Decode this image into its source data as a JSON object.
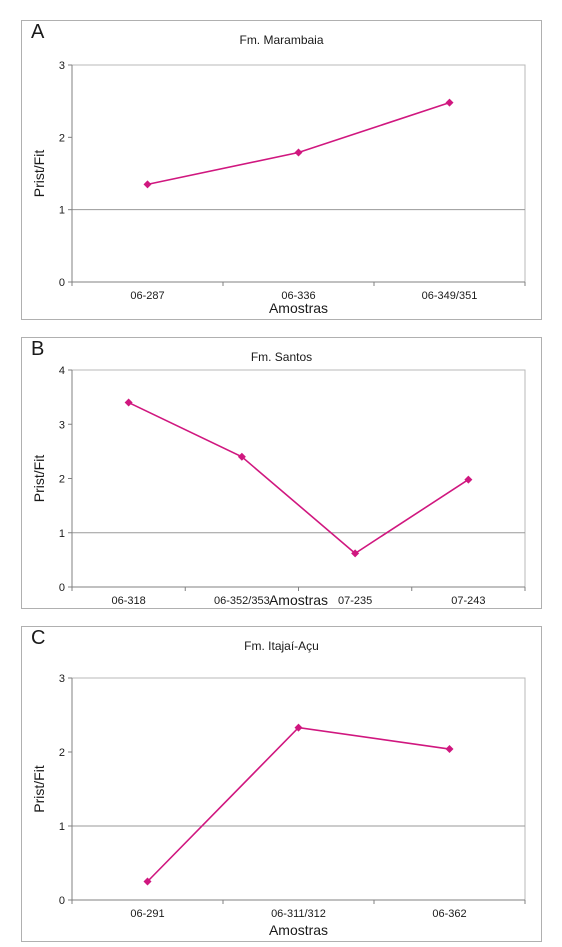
{
  "chart_data": [
    {
      "panel": "A",
      "type": "line",
      "title": "Fm. Marambaia",
      "xlabel": "Amostras",
      "ylabel": "Prist/Fit",
      "categories": [
        "06-287",
        "06-336",
        "06-349/351"
      ],
      "values": [
        1.35,
        1.79,
        2.48
      ],
      "ylim": [
        0,
        3
      ],
      "yticks": [
        "0",
        "1",
        "2",
        "3"
      ],
      "grid": "horizontal at 1",
      "color": "#d0177f"
    },
    {
      "panel": "B",
      "type": "line",
      "title": "Fm. Santos",
      "xlabel": "Amostras",
      "ylabel": "Prist/Fit",
      "categories": [
        "06-318",
        "06-352/353",
        "07-235",
        "07-243"
      ],
      "values": [
        3.4,
        2.4,
        0.62,
        1.98
      ],
      "ylim": [
        0,
        4
      ],
      "yticks": [
        "0",
        "1",
        "2",
        "3",
        "4"
      ],
      "grid": "horizontal at 1",
      "color": "#d0177f"
    },
    {
      "panel": "C",
      "type": "line",
      "title": "Fm. Itajaí-Açu",
      "xlabel": "Amostras",
      "ylabel": "Prist/Fit",
      "categories": [
        "06-291",
        "06-311/312",
        "06-362"
      ],
      "values": [
        0.25,
        2.33,
        2.04
      ],
      "ylim": [
        0,
        3
      ],
      "yticks": [
        "0",
        "1",
        "2",
        "3"
      ],
      "grid": "horizontal at 1",
      "color": "#d0177f"
    }
  ]
}
